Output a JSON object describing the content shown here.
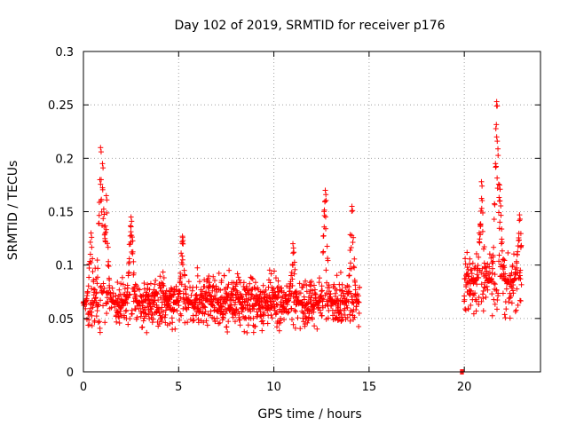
{
  "chart_data": {
    "type": "scatter",
    "title": "Day 102 of 2019, SRMTID for receiver p176",
    "xlabel": "GPS time / hours",
    "ylabel": "SRMTID / TECUs",
    "xlim": [
      0,
      24
    ],
    "ylim": [
      0,
      0.3
    ],
    "xticks": [
      0,
      5,
      10,
      15,
      20
    ],
    "xtick_labels": [
      "0",
      "5",
      "10",
      "15",
      "20"
    ],
    "yticks": [
      0,
      0.05,
      0.1,
      0.15,
      0.2,
      0.25,
      0.3
    ],
    "ytick_labels": [
      "0",
      "0.05",
      "0.1",
      "0.15",
      "0.2",
      "0.25",
      "0.3"
    ],
    "grid": true,
    "marker": "+",
    "color": "#ff0000",
    "series": [
      {
        "name": "SRMTID",
        "segments": [
          {
            "x_start": 0.0,
            "x_end": 14.5,
            "x_step": 0.02,
            "baseline": 0.065,
            "noise": 0.016,
            "peaks": [
              {
                "x": 0.4,
                "y": 0.13
              },
              {
                "x": 0.9,
                "y": 0.21
              },
              {
                "x": 1.0,
                "y": 0.195
              },
              {
                "x": 1.2,
                "y": 0.165
              },
              {
                "x": 2.5,
                "y": 0.145
              },
              {
                "x": 5.2,
                "y": 0.127
              },
              {
                "x": 11.0,
                "y": 0.12
              },
              {
                "x": 12.7,
                "y": 0.17
              },
              {
                "x": 14.1,
                "y": 0.155
              }
            ]
          },
          {
            "x_start": 19.8,
            "x_end": 19.95,
            "x_step": 0.05,
            "constant": 0.0
          },
          {
            "x_start": 20.0,
            "x_end": 23.0,
            "x_step": 0.02,
            "baseline": 0.085,
            "noise": 0.022,
            "peaks": [
              {
                "x": 20.9,
                "y": 0.178
              },
              {
                "x": 21.7,
                "y": 0.253
              },
              {
                "x": 21.7,
                "y": 0.22
              },
              {
                "x": 21.85,
                "y": 0.175
              },
              {
                "x": 22.9,
                "y": 0.147
              }
            ]
          }
        ]
      }
    ]
  }
}
